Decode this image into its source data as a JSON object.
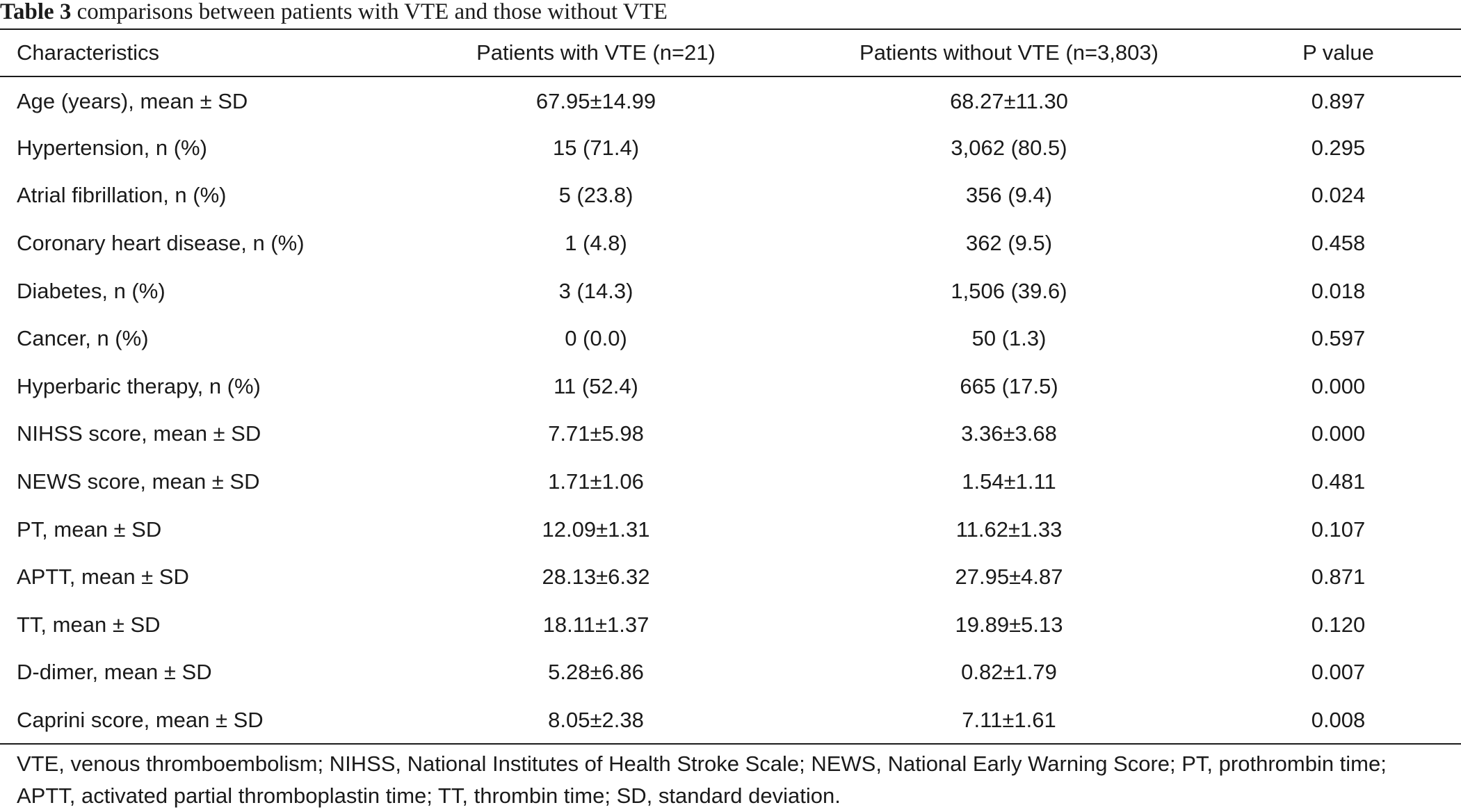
{
  "caption": {
    "label": "Table 3",
    "text": "comparisons between patients with VTE and those without VTE"
  },
  "table": {
    "headers": [
      "Characteristics",
      "Patients with VTE (n=21)",
      "Patients without VTE (n=3,803)",
      "P value"
    ],
    "rows": [
      [
        "Age (years), mean ± SD",
        "67.95±14.99",
        "68.27±11.30",
        "0.897"
      ],
      [
        "Hypertension, n (%)",
        "15 (71.4)",
        "3,062 (80.5)",
        "0.295"
      ],
      [
        "Atrial fibrillation, n (%)",
        "5 (23.8)",
        "356 (9.4)",
        "0.024"
      ],
      [
        "Coronary heart disease, n (%)",
        "1 (4.8)",
        "362 (9.5)",
        "0.458"
      ],
      [
        "Diabetes, n (%)",
        "3 (14.3)",
        "1,506 (39.6)",
        "0.018"
      ],
      [
        "Cancer, n (%)",
        "0 (0.0)",
        "50 (1.3)",
        "0.597"
      ],
      [
        "Hyperbaric therapy, n (%)",
        "11 (52.4)",
        "665 (17.5)",
        "0.000"
      ],
      [
        "NIHSS score, mean ± SD",
        "7.71±5.98",
        "3.36±3.68",
        "0.000"
      ],
      [
        "NEWS score, mean ± SD",
        "1.71±1.06",
        "1.54±1.11",
        "0.481"
      ],
      [
        "PT, mean ± SD",
        "12.09±1.31",
        "11.62±1.33",
        "0.107"
      ],
      [
        "APTT, mean ± SD",
        "28.13±6.32",
        "27.95±4.87",
        "0.871"
      ],
      [
        "TT, mean ± SD",
        "18.11±1.37",
        "19.89±5.13",
        "0.120"
      ],
      [
        "D-dimer, mean ± SD",
        "5.28±6.86",
        "0.82±1.79",
        "0.007"
      ],
      [
        "Caprini score, mean ± SD",
        "8.05±2.38",
        "7.11±1.61",
        "0.008"
      ]
    ]
  },
  "footnote": "VTE, venous thromboembolism; NIHSS, National Institutes of Health Stroke Scale; NEWS, National Early Warning Score; PT, prothrombin time; APTT, activated partial thromboplastin time; TT, thrombin time; SD, standard deviation."
}
